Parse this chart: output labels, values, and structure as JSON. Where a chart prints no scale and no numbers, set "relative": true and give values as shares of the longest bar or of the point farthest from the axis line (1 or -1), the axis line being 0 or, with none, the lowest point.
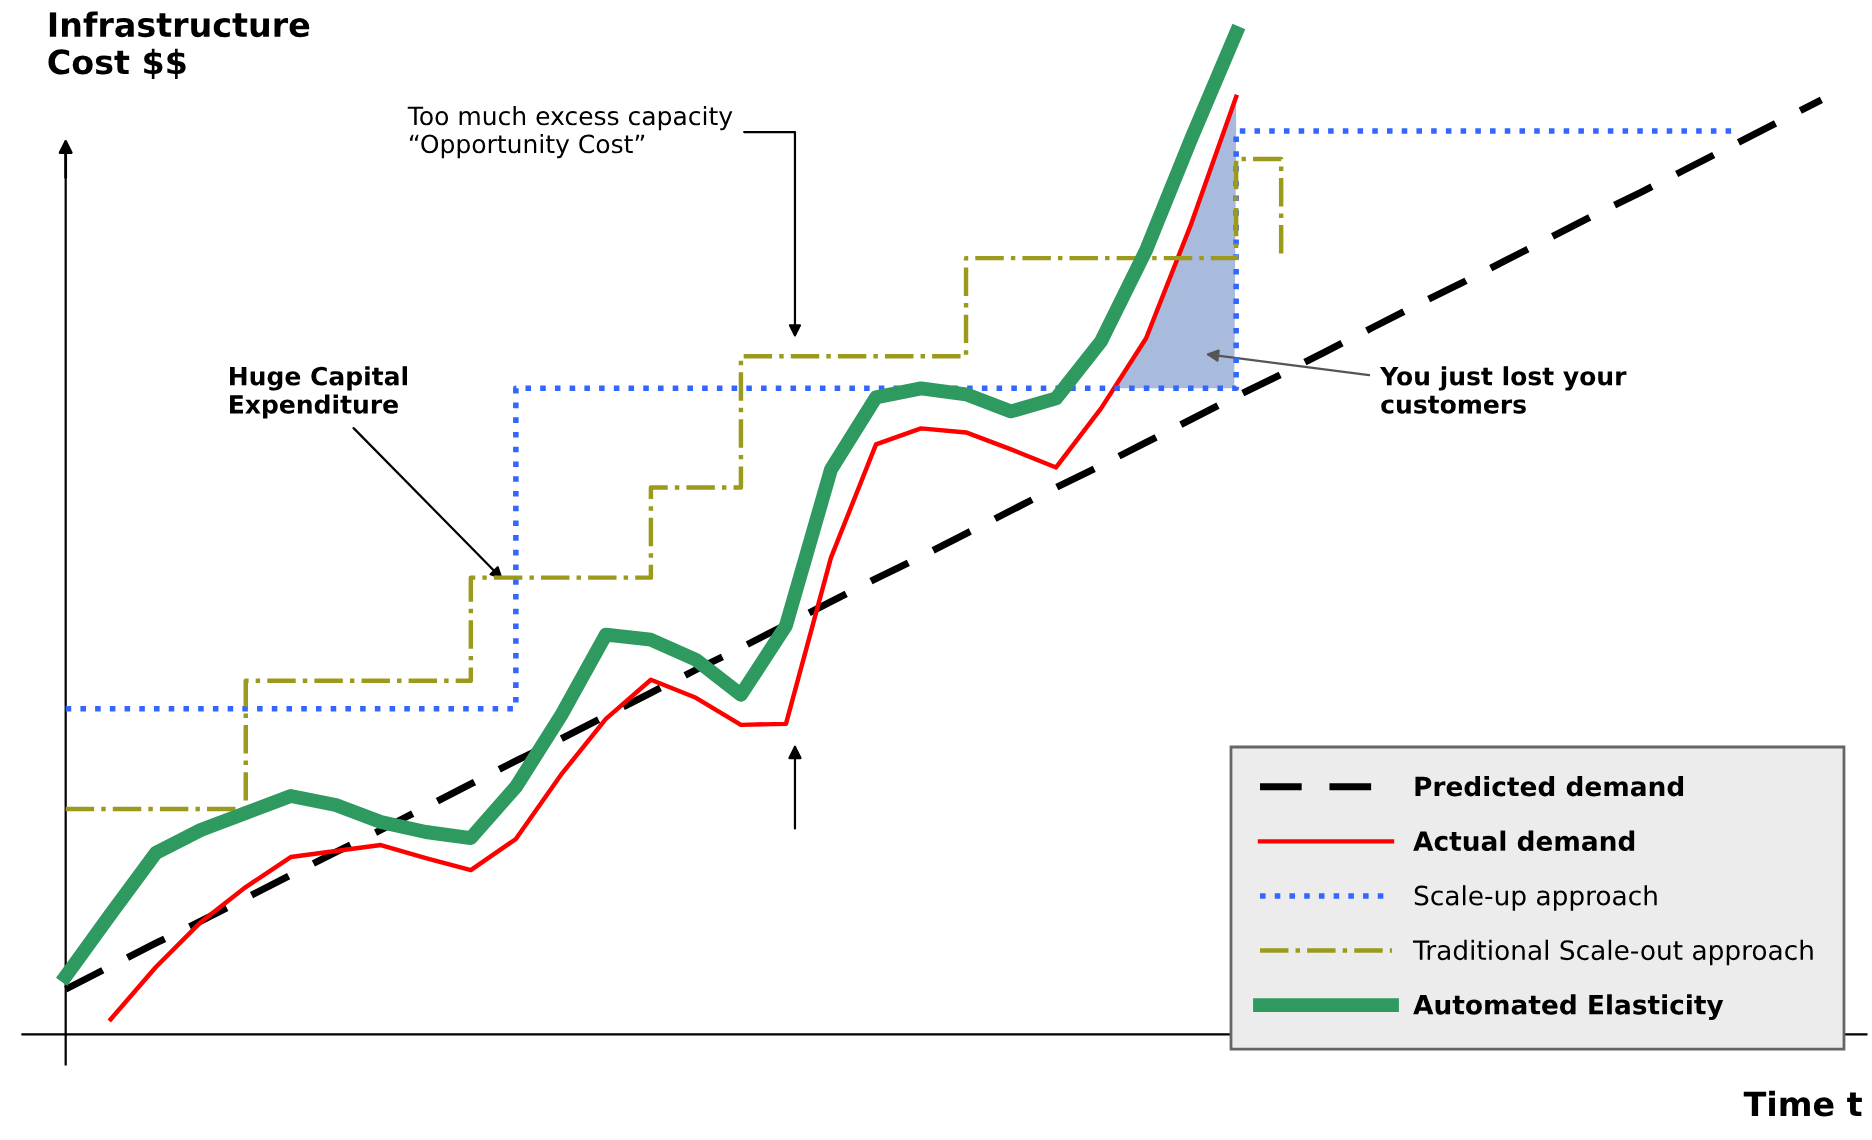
{
  "chart_data": {
    "type": "line",
    "relative": true,
    "xlabel": "Time t",
    "ylabel": "Infrastructure\nCost $$",
    "legend": "bottom right",
    "marker": "none",
    "categories": [
      null,
      null,
      null,
      null,
      null,
      null,
      null,
      null,
      null,
      null,
      null,
      null,
      null,
      null,
      null,
      null,
      null,
      null,
      null,
      null,
      null,
      null,
      null,
      null,
      null,
      null,
      null,
      null,
      null,
      null,
      null,
      null,
      null,
      null,
      null,
      null,
      null,
      null,
      null,
      null
    ],
    "series": [
      {
        "name": "Predicted demand",
        "type": "line",
        "color": "#000000",
        "line_style": "dashed",
        "values": [
          0.045,
          0.068,
          0.091,
          0.113,
          0.136,
          0.159,
          0.182,
          0.204,
          0.227,
          0.25,
          0.273,
          0.295,
          0.318,
          0.341,
          0.364,
          0.386,
          0.409,
          0.432,
          0.455,
          0.477,
          0.5,
          0.523,
          0.546,
          0.568,
          0.591,
          0.614,
          0.637,
          0.659,
          0.682,
          0.705,
          0.728,
          0.75,
          0.773,
          0.796,
          0.819,
          0.841,
          0.864,
          0.887,
          0.91,
          0.933
        ]
      },
      {
        "name": "Actual demand",
        "type": "line",
        "color": "#ff0000",
        "line_style": "solid",
        "values": [
          null,
          0.015,
          0.067,
          0.112,
          0.147,
          0.177,
          0.183,
          0.189,
          0.176,
          0.164,
          0.195,
          0.259,
          0.315,
          0.354,
          0.336,
          0.309,
          0.31,
          0.476,
          0.589,
          0.605,
          0.601,
          0.584,
          0.566,
          0.625,
          0.695,
          0.809,
          0.936,
          null,
          null,
          null,
          null,
          null,
          null,
          null,
          null,
          null,
          null,
          null,
          null,
          null
        ]
      },
      {
        "name": "Scale-up approach",
        "type": "step",
        "color": "#3366ff",
        "line_style": "dotted",
        "values": [
          0.325,
          0.325,
          0.325,
          0.325,
          0.325,
          0.325,
          0.325,
          0.325,
          0.325,
          0.325,
          0.645,
          0.645,
          0.645,
          0.645,
          0.645,
          0.645,
          0.645,
          0.645,
          0.645,
          0.645,
          0.645,
          0.645,
          0.645,
          0.645,
          0.645,
          0.645,
          0.902,
          0.902,
          0.902,
          0.902,
          0.902,
          0.902,
          0.902,
          0.902,
          0.902,
          0.902,
          0.902,
          0.902,
          null,
          null
        ]
      },
      {
        "name": "Traditional Scale-out approach",
        "type": "step",
        "color": "#9c9a1c",
        "line_style": "dashdot",
        "values": [
          0.225,
          0.225,
          0.225,
          0.225,
          0.353,
          0.353,
          0.353,
          0.353,
          0.353,
          0.456,
          0.456,
          0.456,
          0.456,
          0.546,
          0.546,
          0.677,
          0.677,
          0.677,
          0.677,
          0.677,
          0.775,
          0.775,
          0.775,
          0.775,
          0.775,
          0.775,
          0.874,
          0.775,
          null,
          null,
          null,
          null,
          null,
          null,
          null,
          null,
          null,
          null,
          null,
          null
        ]
      },
      {
        "name": "Automated Elasticity",
        "type": "line",
        "color": "#2e9a5f",
        "line_style": "solid",
        "values": [
          0.058,
          0.12,
          0.181,
          0.204,
          0.221,
          0.238,
          0.229,
          0.212,
          0.202,
          0.196,
          0.247,
          0.318,
          0.399,
          0.394,
          0.374,
          0.339,
          0.408,
          0.564,
          0.636,
          0.645,
          0.639,
          0.622,
          0.635,
          0.692,
          0.783,
          0.894,
          1.0,
          null,
          null,
          null,
          null,
          null,
          null,
          null,
          null,
          null,
          null,
          null,
          null,
          null
        ]
      }
    ],
    "annotations": [
      "Huge Capital\nExpenditure",
      "Too much excess capacity\n“Opportunity Cost”",
      "You just lost your\ncustomers"
    ]
  }
}
